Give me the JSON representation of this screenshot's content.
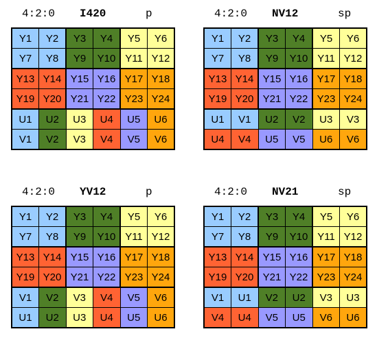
{
  "colors": {
    "blue": "#99ccff",
    "green": "#4f7f27",
    "yellow": "#ffff99",
    "red": "#ff6333",
    "purple": "#9999ff",
    "orange": "#ffa60d"
  },
  "panels": [
    {
      "subsampling": "4:2:0",
      "format": "I420",
      "layout": "p",
      "rows": [
        [
          {
            "t": "Y1",
            "c": "blue"
          },
          {
            "t": "Y2",
            "c": "blue"
          },
          {
            "t": "Y3",
            "c": "green"
          },
          {
            "t": "Y4",
            "c": "green"
          },
          {
            "t": "Y5",
            "c": "yellow"
          },
          {
            "t": "Y6",
            "c": "yellow"
          }
        ],
        [
          {
            "t": "Y7",
            "c": "blue"
          },
          {
            "t": "Y8",
            "c": "blue"
          },
          {
            "t": "Y9",
            "c": "green"
          },
          {
            "t": "Y10",
            "c": "green"
          },
          {
            "t": "Y11",
            "c": "yellow"
          },
          {
            "t": "Y12",
            "c": "yellow"
          }
        ],
        [
          {
            "t": "Y13",
            "c": "red"
          },
          {
            "t": "Y14",
            "c": "red"
          },
          {
            "t": "Y15",
            "c": "purple"
          },
          {
            "t": "Y16",
            "c": "purple"
          },
          {
            "t": "Y17",
            "c": "orange"
          },
          {
            "t": "Y18",
            "c": "orange"
          }
        ],
        [
          {
            "t": "Y19",
            "c": "red"
          },
          {
            "t": "Y20",
            "c": "red"
          },
          {
            "t": "Y21",
            "c": "purple"
          },
          {
            "t": "Y22",
            "c": "purple"
          },
          {
            "t": "Y23",
            "c": "orange"
          },
          {
            "t": "Y24",
            "c": "orange"
          }
        ],
        [
          {
            "t": "U1",
            "c": "blue"
          },
          {
            "t": "U2",
            "c": "green"
          },
          {
            "t": "U3",
            "c": "yellow"
          },
          {
            "t": "U4",
            "c": "red"
          },
          {
            "t": "U5",
            "c": "purple"
          },
          {
            "t": "U6",
            "c": "orange"
          }
        ],
        [
          {
            "t": "V1",
            "c": "blue"
          },
          {
            "t": "V2",
            "c": "green"
          },
          {
            "t": "V3",
            "c": "yellow"
          },
          {
            "t": "V4",
            "c": "red"
          },
          {
            "t": "V5",
            "c": "purple"
          },
          {
            "t": "V6",
            "c": "orange"
          }
        ]
      ]
    },
    {
      "subsampling": "4:2:0",
      "format": "NV12",
      "layout": "sp",
      "rows": [
        [
          {
            "t": "Y1",
            "c": "blue"
          },
          {
            "t": "Y2",
            "c": "blue"
          },
          {
            "t": "Y3",
            "c": "green"
          },
          {
            "t": "Y4",
            "c": "green"
          },
          {
            "t": "Y5",
            "c": "yellow"
          },
          {
            "t": "Y6",
            "c": "yellow"
          }
        ],
        [
          {
            "t": "Y7",
            "c": "blue"
          },
          {
            "t": "Y8",
            "c": "blue"
          },
          {
            "t": "Y9",
            "c": "green"
          },
          {
            "t": "Y10",
            "c": "green"
          },
          {
            "t": "Y11",
            "c": "yellow"
          },
          {
            "t": "Y12",
            "c": "yellow"
          }
        ],
        [
          {
            "t": "Y13",
            "c": "red"
          },
          {
            "t": "Y14",
            "c": "red"
          },
          {
            "t": "Y15",
            "c": "purple"
          },
          {
            "t": "Y16",
            "c": "purple"
          },
          {
            "t": "Y17",
            "c": "orange"
          },
          {
            "t": "Y18",
            "c": "orange"
          }
        ],
        [
          {
            "t": "Y19",
            "c": "red"
          },
          {
            "t": "Y20",
            "c": "red"
          },
          {
            "t": "Y21",
            "c": "purple"
          },
          {
            "t": "Y22",
            "c": "purple"
          },
          {
            "t": "Y23",
            "c": "orange"
          },
          {
            "t": "Y24",
            "c": "orange"
          }
        ],
        [
          {
            "t": "U1",
            "c": "blue"
          },
          {
            "t": "V1",
            "c": "blue"
          },
          {
            "t": "U2",
            "c": "green"
          },
          {
            "t": "V2",
            "c": "green"
          },
          {
            "t": "U3",
            "c": "yellow"
          },
          {
            "t": "V3",
            "c": "yellow"
          }
        ],
        [
          {
            "t": "U4",
            "c": "red"
          },
          {
            "t": "V4",
            "c": "red"
          },
          {
            "t": "U5",
            "c": "purple"
          },
          {
            "t": "V5",
            "c": "purple"
          },
          {
            "t": "U6",
            "c": "orange"
          },
          {
            "t": "V6",
            "c": "orange"
          }
        ]
      ]
    },
    {
      "subsampling": "4:2:0",
      "format": "YV12",
      "layout": "p",
      "rows": [
        [
          {
            "t": "Y1",
            "c": "blue"
          },
          {
            "t": "Y2",
            "c": "blue"
          },
          {
            "t": "Y3",
            "c": "green"
          },
          {
            "t": "Y4",
            "c": "green"
          },
          {
            "t": "Y5",
            "c": "yellow"
          },
          {
            "t": "Y6",
            "c": "yellow"
          }
        ],
        [
          {
            "t": "Y7",
            "c": "blue"
          },
          {
            "t": "Y8",
            "c": "blue"
          },
          {
            "t": "Y9",
            "c": "green"
          },
          {
            "t": "Y10",
            "c": "green"
          },
          {
            "t": "Y11",
            "c": "yellow"
          },
          {
            "t": "Y12",
            "c": "yellow"
          }
        ],
        [
          {
            "t": "Y13",
            "c": "red"
          },
          {
            "t": "Y14",
            "c": "red"
          },
          {
            "t": "Y15",
            "c": "purple"
          },
          {
            "t": "Y16",
            "c": "purple"
          },
          {
            "t": "Y17",
            "c": "orange"
          },
          {
            "t": "Y18",
            "c": "orange"
          }
        ],
        [
          {
            "t": "Y19",
            "c": "red"
          },
          {
            "t": "Y20",
            "c": "red"
          },
          {
            "t": "Y21",
            "c": "purple"
          },
          {
            "t": "Y22",
            "c": "purple"
          },
          {
            "t": "Y23",
            "c": "orange"
          },
          {
            "t": "Y24",
            "c": "orange"
          }
        ],
        [
          {
            "t": "V1",
            "c": "blue"
          },
          {
            "t": "V2",
            "c": "green"
          },
          {
            "t": "V3",
            "c": "yellow"
          },
          {
            "t": "V4",
            "c": "red"
          },
          {
            "t": "V5",
            "c": "purple"
          },
          {
            "t": "V6",
            "c": "orange"
          }
        ],
        [
          {
            "t": "U1",
            "c": "blue"
          },
          {
            "t": "U2",
            "c": "green"
          },
          {
            "t": "U3",
            "c": "yellow"
          },
          {
            "t": "U4",
            "c": "red"
          },
          {
            "t": "U5",
            "c": "purple"
          },
          {
            "t": "U6",
            "c": "orange"
          }
        ]
      ]
    },
    {
      "subsampling": "4:2:0",
      "format": "NV21",
      "layout": "sp",
      "rows": [
        [
          {
            "t": "Y1",
            "c": "blue"
          },
          {
            "t": "Y2",
            "c": "blue"
          },
          {
            "t": "Y3",
            "c": "green"
          },
          {
            "t": "Y4",
            "c": "green"
          },
          {
            "t": "Y5",
            "c": "yellow"
          },
          {
            "t": "Y6",
            "c": "yellow"
          }
        ],
        [
          {
            "t": "Y7",
            "c": "blue"
          },
          {
            "t": "Y8",
            "c": "blue"
          },
          {
            "t": "Y9",
            "c": "green"
          },
          {
            "t": "Y10",
            "c": "green"
          },
          {
            "t": "Y11",
            "c": "yellow"
          },
          {
            "t": "Y12",
            "c": "yellow"
          }
        ],
        [
          {
            "t": "Y13",
            "c": "red"
          },
          {
            "t": "Y14",
            "c": "red"
          },
          {
            "t": "Y15",
            "c": "purple"
          },
          {
            "t": "Y16",
            "c": "purple"
          },
          {
            "t": "Y17",
            "c": "orange"
          },
          {
            "t": "Y18",
            "c": "orange"
          }
        ],
        [
          {
            "t": "Y19",
            "c": "red"
          },
          {
            "t": "Y20",
            "c": "red"
          },
          {
            "t": "Y21",
            "c": "purple"
          },
          {
            "t": "Y22",
            "c": "purple"
          },
          {
            "t": "Y23",
            "c": "orange"
          },
          {
            "t": "Y24",
            "c": "orange"
          }
        ],
        [
          {
            "t": "V1",
            "c": "blue"
          },
          {
            "t": "U1",
            "c": "blue"
          },
          {
            "t": "V2",
            "c": "green"
          },
          {
            "t": "U2",
            "c": "green"
          },
          {
            "t": "V3",
            "c": "yellow"
          },
          {
            "t": "U3",
            "c": "yellow"
          }
        ],
        [
          {
            "t": "V4",
            "c": "red"
          },
          {
            "t": "U4",
            "c": "red"
          },
          {
            "t": "V5",
            "c": "purple"
          },
          {
            "t": "U5",
            "c": "purple"
          },
          {
            "t": "V6",
            "c": "orange"
          },
          {
            "t": "U6",
            "c": "orange"
          }
        ]
      ]
    }
  ]
}
